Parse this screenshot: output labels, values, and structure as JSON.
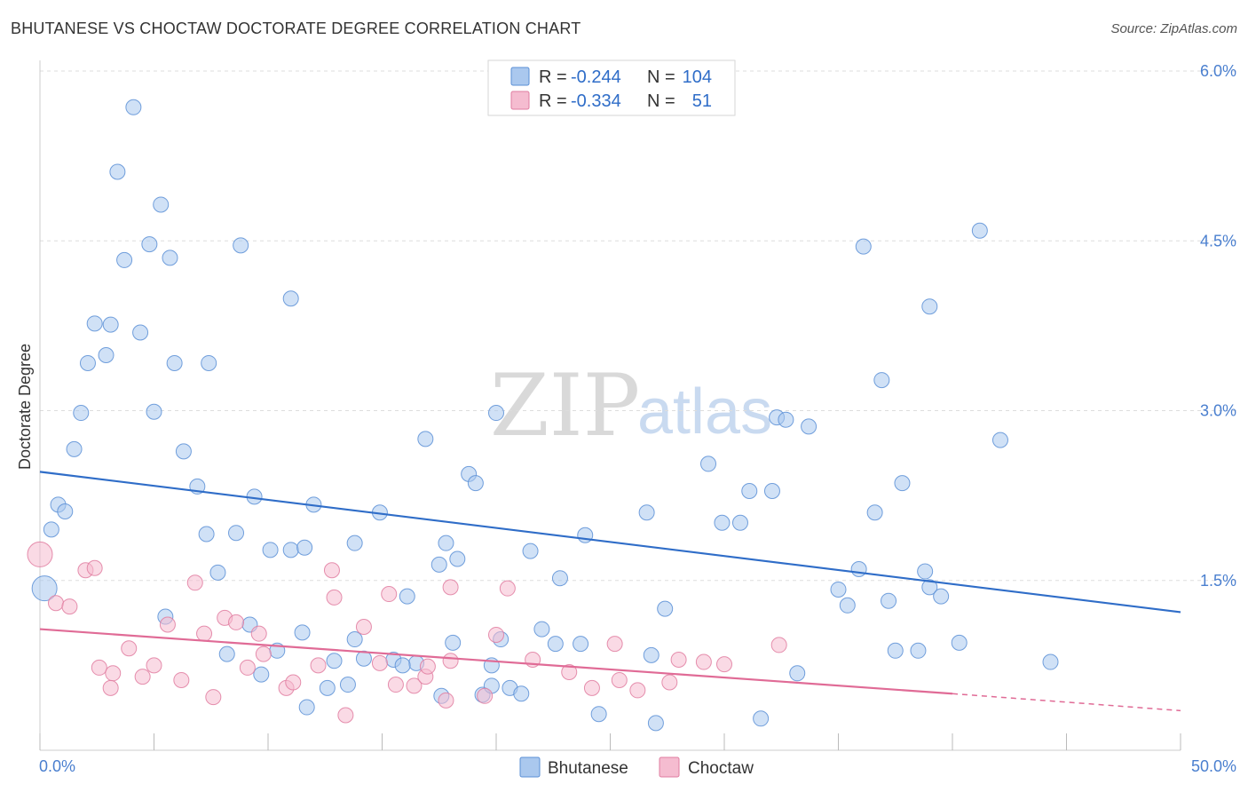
{
  "title": "BHUTANESE VS CHOCTAW DOCTORATE DEGREE CORRELATION CHART",
  "source": "Source: ZipAtlas.com",
  "watermark": {
    "zip": "ZIP",
    "atlas": "atlas"
  },
  "legend": {
    "r_label": "R =",
    "n_label": "N =",
    "rows": [
      {
        "r": "-0.244",
        "n": "104"
      },
      {
        "r": "-0.334",
        "n": "51"
      }
    ]
  },
  "colors": {
    "bhutanese_fill": "#aac8ee",
    "bhutanese_stroke": "#5b8fd6",
    "bhutanese_line": "#2f6dc8",
    "choctaw_fill": "#f5bcd0",
    "choctaw_stroke": "#e07ca0",
    "choctaw_line": "#e06b96"
  },
  "chart_data": {
    "type": "scatter",
    "title": "BHUTANESE VS CHOCTAW DOCTORATE DEGREE CORRELATION CHART",
    "xlabel": "",
    "ylabel": "Doctorate Degree",
    "xlim": [
      0,
      50
    ],
    "ylim": [
      0,
      6.0
    ],
    "x_tick_labels": [
      "0.0%",
      "50.0%"
    ],
    "y_ticks": [
      1.5,
      3.0,
      4.5,
      6.0
    ],
    "y_tick_labels": [
      "1.5%",
      "3.0%",
      "4.5%",
      "6.0%"
    ],
    "grid": true,
    "series": [
      {
        "name": "Bhutanese",
        "r": -0.244,
        "n": 104,
        "trend": {
          "x0": 0,
          "y0": 2.46,
          "x1": 50,
          "y1": 1.22
        },
        "points": [
          [
            4.1,
            5.68
          ],
          [
            3.4,
            5.11
          ],
          [
            5.3,
            4.82
          ],
          [
            4.8,
            4.47
          ],
          [
            5.7,
            4.35
          ],
          [
            3.7,
            4.33
          ],
          [
            8.8,
            4.46
          ],
          [
            11.0,
            3.99
          ],
          [
            2.4,
            3.77
          ],
          [
            3.1,
            3.76
          ],
          [
            4.4,
            3.69
          ],
          [
            2.9,
            3.49
          ],
          [
            2.1,
            3.42
          ],
          [
            5.9,
            3.42
          ],
          [
            7.4,
            3.42
          ],
          [
            1.8,
            2.98
          ],
          [
            5.0,
            2.99
          ],
          [
            1.5,
            2.66
          ],
          [
            6.3,
            2.64
          ],
          [
            0.8,
            2.17
          ],
          [
            1.1,
            2.11
          ],
          [
            0.5,
            1.95
          ],
          [
            6.9,
            2.33
          ],
          [
            9.4,
            2.24
          ],
          [
            12.0,
            2.17
          ],
          [
            7.3,
            1.91
          ],
          [
            8.6,
            1.92
          ],
          [
            10.1,
            1.77
          ],
          [
            11.0,
            1.77
          ],
          [
            11.6,
            1.79
          ],
          [
            13.8,
            1.83
          ],
          [
            14.9,
            2.1
          ],
          [
            16.9,
            2.75
          ],
          [
            18.8,
            2.44
          ],
          [
            19.1,
            2.36
          ],
          [
            20.0,
            2.98
          ],
          [
            17.5,
            1.64
          ],
          [
            17.8,
            1.83
          ],
          [
            18.3,
            1.69
          ],
          [
            21.5,
            1.76
          ],
          [
            22.8,
            1.52
          ],
          [
            23.9,
            1.9
          ],
          [
            16.1,
            1.36
          ],
          [
            26.6,
            2.1
          ],
          [
            29.3,
            2.53
          ],
          [
            31.1,
            2.29
          ],
          [
            32.1,
            2.29
          ],
          [
            32.3,
            2.94
          ],
          [
            32.7,
            2.92
          ],
          [
            33.7,
            2.86
          ],
          [
            36.1,
            4.45
          ],
          [
            36.9,
            3.27
          ],
          [
            37.8,
            2.36
          ],
          [
            35.9,
            1.6
          ],
          [
            35.0,
            1.42
          ],
          [
            36.6,
            2.1
          ],
          [
            39.0,
            3.92
          ],
          [
            38.8,
            1.58
          ],
          [
            39.0,
            1.44
          ],
          [
            39.5,
            1.36
          ],
          [
            41.2,
            4.59
          ],
          [
            42.1,
            2.74
          ],
          [
            27.4,
            1.25
          ],
          [
            29.9,
            2.01
          ],
          [
            30.7,
            2.01
          ],
          [
            37.2,
            1.32
          ],
          [
            35.4,
            1.28
          ],
          [
            0.2,
            1.43
          ],
          [
            7.8,
            1.57
          ],
          [
            5.5,
            1.18
          ],
          [
            9.2,
            1.11
          ],
          [
            11.5,
            1.04
          ],
          [
            13.8,
            0.98
          ],
          [
            16.5,
            0.77
          ],
          [
            18.1,
            0.95
          ],
          [
            19.8,
            0.75
          ],
          [
            20.2,
            0.98
          ],
          [
            22.0,
            1.07
          ],
          [
            22.6,
            0.94
          ],
          [
            23.7,
            0.94
          ],
          [
            12.9,
            0.79
          ],
          [
            14.2,
            0.81
          ],
          [
            15.5,
            0.8
          ],
          [
            10.4,
            0.88
          ],
          [
            8.2,
            0.85
          ],
          [
            9.7,
            0.67
          ],
          [
            13.5,
            0.58
          ],
          [
            12.6,
            0.55
          ],
          [
            11.7,
            0.38
          ],
          [
            19.4,
            0.49
          ],
          [
            19.8,
            0.57
          ],
          [
            20.6,
            0.55
          ],
          [
            21.1,
            0.5
          ],
          [
            17.6,
            0.48
          ],
          [
            24.5,
            0.32
          ],
          [
            26.8,
            0.84
          ],
          [
            27.0,
            0.24
          ],
          [
            31.6,
            0.28
          ],
          [
            33.2,
            0.68
          ],
          [
            37.5,
            0.88
          ],
          [
            38.5,
            0.88
          ],
          [
            40.3,
            0.95
          ],
          [
            44.3,
            0.78
          ],
          [
            15.9,
            0.75
          ]
        ]
      },
      {
        "name": "Choctaw",
        "r": -0.334,
        "n": 51,
        "trend": {
          "x0": 0,
          "y0": 1.07,
          "x1": 40,
          "y1": 0.5,
          "dash_x1": 50,
          "dash_y1": 0.35
        },
        "points": [
          [
            0.0,
            1.73
          ],
          [
            2.0,
            1.59
          ],
          [
            2.4,
            1.61
          ],
          [
            0.7,
            1.3
          ],
          [
            1.3,
            1.27
          ],
          [
            6.8,
            1.48
          ],
          [
            12.8,
            1.59
          ],
          [
            12.9,
            1.35
          ],
          [
            15.3,
            1.38
          ],
          [
            18.0,
            1.44
          ],
          [
            20.5,
            1.43
          ],
          [
            5.6,
            1.11
          ],
          [
            7.2,
            1.03
          ],
          [
            8.1,
            1.17
          ],
          [
            8.6,
            1.13
          ],
          [
            9.6,
            1.03
          ],
          [
            14.2,
            1.09
          ],
          [
            20.0,
            1.02
          ],
          [
            25.2,
            0.94
          ],
          [
            32.4,
            0.93
          ],
          [
            3.9,
            0.9
          ],
          [
            2.6,
            0.73
          ],
          [
            3.2,
            0.68
          ],
          [
            4.5,
            0.65
          ],
          [
            5.0,
            0.75
          ],
          [
            6.2,
            0.62
          ],
          [
            9.1,
            0.73
          ],
          [
            9.8,
            0.85
          ],
          [
            10.8,
            0.55
          ],
          [
            11.1,
            0.6
          ],
          [
            12.2,
            0.75
          ],
          [
            14.9,
            0.77
          ],
          [
            15.6,
            0.58
          ],
          [
            16.4,
            0.57
          ],
          [
            16.9,
            0.65
          ],
          [
            17.0,
            0.74
          ],
          [
            17.8,
            0.44
          ],
          [
            18.0,
            0.79
          ],
          [
            19.5,
            0.48
          ],
          [
            21.6,
            0.8
          ],
          [
            23.2,
            0.69
          ],
          [
            24.2,
            0.55
          ],
          [
            25.4,
            0.62
          ],
          [
            26.2,
            0.53
          ],
          [
            27.6,
            0.6
          ],
          [
            28.0,
            0.8
          ],
          [
            29.1,
            0.78
          ],
          [
            30.0,
            0.76
          ],
          [
            3.1,
            0.55
          ],
          [
            7.6,
            0.47
          ],
          [
            13.4,
            0.31
          ]
        ]
      }
    ]
  }
}
